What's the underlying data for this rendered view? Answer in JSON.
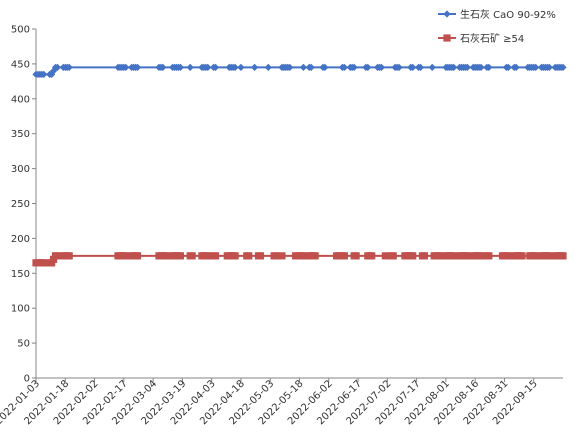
{
  "chart_data": {
    "type": "line",
    "title": "",
    "xlabel": "",
    "ylabel": "",
    "ylim": [
      0,
      500
    ],
    "yticks": [
      0,
      50,
      100,
      150,
      200,
      250,
      300,
      350,
      400,
      450,
      500
    ],
    "xlim": [
      "2022-01-03",
      "2022-09-30"
    ],
    "xticks": [
      "2022-01-03",
      "2022-01-18",
      "2022-02-02",
      "2022-02-17",
      "2022-03-04",
      "2022-03-19",
      "2022-04-03",
      "2022-04-18",
      "2022-05-03",
      "2022-05-18",
      "2022-06-02",
      "2022-06-17",
      "2022-07-02",
      "2022-07-17",
      "2022-08-01",
      "2022-08-16",
      "2022-08-31",
      "2022-09-15"
    ],
    "grid": false,
    "legend_position": "top-right",
    "series": [
      {
        "name": "生石灰 CaO 90-92%",
        "color": "#4472C4",
        "marker": "diamond",
        "x": [
          "2022-01-03",
          "2022-01-04",
          "2022-01-05",
          "2022-01-06",
          "2022-01-07",
          "2022-01-10",
          "2022-01-11",
          "2022-01-12",
          "2022-01-13",
          "2022-01-14",
          "2022-01-17",
          "2022-01-18",
          "2022-01-19",
          "2022-01-20",
          "2022-02-14",
          "2022-02-15",
          "2022-02-16",
          "2022-02-17",
          "2022-02-18",
          "2022-02-21",
          "2022-02-22",
          "2022-02-23",
          "2022-02-24",
          "2022-03-07",
          "2022-03-08",
          "2022-03-09",
          "2022-03-14",
          "2022-03-15",
          "2022-03-16",
          "2022-03-17",
          "2022-03-18",
          "2022-03-23",
          "2022-03-29",
          "2022-03-30",
          "2022-03-31",
          "2022-04-01",
          "2022-04-04",
          "2022-04-05",
          "2022-04-12",
          "2022-04-13",
          "2022-04-14",
          "2022-04-15",
          "2022-04-18",
          "2022-04-25",
          "2022-05-02",
          "2022-05-09",
          "2022-05-10",
          "2022-05-11",
          "2022-05-12",
          "2022-05-13",
          "2022-05-20",
          "2022-05-23",
          "2022-05-24",
          "2022-05-30",
          "2022-05-31",
          "2022-06-09",
          "2022-06-10",
          "2022-06-13",
          "2022-06-14",
          "2022-06-15",
          "2022-06-21",
          "2022-06-22",
          "2022-06-27",
          "2022-06-28",
          "2022-06-29",
          "2022-07-06",
          "2022-07-07",
          "2022-07-08",
          "2022-07-14",
          "2022-07-15",
          "2022-07-18",
          "2022-07-19",
          "2022-07-25",
          "2022-08-01",
          "2022-08-02",
          "2022-08-03",
          "2022-08-04",
          "2022-08-05",
          "2022-08-08",
          "2022-08-09",
          "2022-08-10",
          "2022-08-11",
          "2022-08-12",
          "2022-08-15",
          "2022-08-16",
          "2022-08-17",
          "2022-08-18",
          "2022-08-19",
          "2022-08-22",
          "2022-08-23",
          "2022-09-01",
          "2022-09-02",
          "2022-09-05",
          "2022-09-06",
          "2022-09-12",
          "2022-09-13",
          "2022-09-14",
          "2022-09-15",
          "2022-09-16",
          "2022-09-19",
          "2022-09-20",
          "2022-09-21",
          "2022-09-22",
          "2022-09-23",
          "2022-09-26",
          "2022-09-27",
          "2022-09-28",
          "2022-09-29",
          "2022-09-30"
        ],
        "values": [
          435,
          435,
          435,
          435,
          435,
          435,
          435,
          440,
          445,
          445,
          445,
          445,
          445,
          445,
          445,
          445,
          445,
          445,
          445,
          445,
          445,
          445,
          445,
          445,
          445,
          445,
          445,
          445,
          445,
          445,
          445,
          445,
          445,
          445,
          445,
          445,
          445,
          445,
          445,
          445,
          445,
          445,
          445,
          445,
          445,
          445,
          445,
          445,
          445,
          445,
          445,
          445,
          445,
          445,
          445,
          445,
          445,
          445,
          445,
          445,
          445,
          445,
          445,
          445,
          445,
          445,
          445,
          445,
          445,
          445,
          445,
          445,
          445,
          445,
          445,
          445,
          445,
          445,
          445,
          445,
          445,
          445,
          445,
          445,
          445,
          445,
          445,
          445,
          445,
          445,
          445,
          445,
          445,
          445,
          445,
          445,
          445,
          445,
          445,
          445,
          445,
          445,
          445,
          445,
          445,
          445,
          445,
          445,
          445
        ]
      },
      {
        "name": "石灰石矿 ≥54",
        "color": "#C0504D",
        "marker": "square",
        "x": [
          "2022-01-03",
          "2022-01-04",
          "2022-01-05",
          "2022-01-06",
          "2022-01-07",
          "2022-01-10",
          "2022-01-11",
          "2022-01-12",
          "2022-01-13",
          "2022-01-14",
          "2022-01-17",
          "2022-01-18",
          "2022-01-19",
          "2022-01-20",
          "2022-02-14",
          "2022-02-15",
          "2022-02-16",
          "2022-02-17",
          "2022-02-18",
          "2022-02-21",
          "2022-02-22",
          "2022-02-23",
          "2022-02-24",
          "2022-03-07",
          "2022-03-08",
          "2022-03-09",
          "2022-03-10",
          "2022-03-11",
          "2022-03-14",
          "2022-03-15",
          "2022-03-16",
          "2022-03-17",
          "2022-03-18",
          "2022-03-23",
          "2022-03-24",
          "2022-03-29",
          "2022-03-30",
          "2022-03-31",
          "2022-04-01",
          "2022-04-04",
          "2022-04-05",
          "2022-04-11",
          "2022-04-12",
          "2022-04-13",
          "2022-04-14",
          "2022-04-15",
          "2022-04-21",
          "2022-04-22",
          "2022-04-27",
          "2022-04-28",
          "2022-05-05",
          "2022-05-06",
          "2022-05-09",
          "2022-05-16",
          "2022-05-17",
          "2022-05-18",
          "2022-05-19",
          "2022-05-20",
          "2022-05-23",
          "2022-05-24",
          "2022-05-25",
          "2022-05-26",
          "2022-06-06",
          "2022-06-07",
          "2022-06-08",
          "2022-06-09",
          "2022-06-10",
          "2022-06-15",
          "2022-06-16",
          "2022-06-22",
          "2022-06-23",
          "2022-06-24",
          "2022-07-01",
          "2022-07-04",
          "2022-07-05",
          "2022-07-11",
          "2022-07-12",
          "2022-07-13",
          "2022-07-14",
          "2022-07-15",
          "2022-07-20",
          "2022-07-21",
          "2022-07-26",
          "2022-07-27",
          "2022-07-28",
          "2022-07-29",
          "2022-08-01",
          "2022-08-02",
          "2022-08-03",
          "2022-08-04",
          "2022-08-05",
          "2022-08-08",
          "2022-08-09",
          "2022-08-10",
          "2022-08-11",
          "2022-08-12",
          "2022-08-15",
          "2022-08-16",
          "2022-08-17",
          "2022-08-18",
          "2022-08-19",
          "2022-08-22",
          "2022-08-23",
          "2022-08-30",
          "2022-08-31",
          "2022-09-01",
          "2022-09-02",
          "2022-09-05",
          "2022-09-06",
          "2022-09-07",
          "2022-09-08",
          "2022-09-09",
          "2022-09-13",
          "2022-09-14",
          "2022-09-15",
          "2022-09-16",
          "2022-09-19",
          "2022-09-20",
          "2022-09-21",
          "2022-09-22",
          "2022-09-23",
          "2022-09-26",
          "2022-09-27",
          "2022-09-28",
          "2022-09-29",
          "2022-09-30"
        ],
        "values": [
          165,
          165,
          165,
          165,
          165,
          165,
          165,
          170,
          175,
          175,
          175,
          175,
          175,
          175,
          175,
          175,
          175,
          175,
          175,
          175,
          175,
          175,
          175,
          175,
          175,
          175,
          175,
          175,
          175,
          175,
          175,
          175,
          175,
          175,
          175,
          175,
          175,
          175,
          175,
          175,
          175,
          175,
          175,
          175,
          175,
          175,
          175,
          175,
          175,
          175,
          175,
          175,
          175,
          175,
          175,
          175,
          175,
          175,
          175,
          175,
          175,
          175,
          175,
          175,
          175,
          175,
          175,
          175,
          175,
          175,
          175,
          175,
          175,
          175,
          175,
          175,
          175,
          175,
          175,
          175,
          175,
          175,
          175,
          175,
          175,
          175,
          175,
          175,
          175,
          175,
          175,
          175,
          175,
          175,
          175,
          175,
          175,
          175,
          175,
          175,
          175,
          175,
          175,
          175,
          175,
          175,
          175,
          175,
          175,
          175,
          175,
          175,
          175,
          175,
          175,
          175,
          175,
          175,
          175,
          175,
          175,
          175,
          175,
          175,
          175,
          175
        ]
      }
    ]
  }
}
